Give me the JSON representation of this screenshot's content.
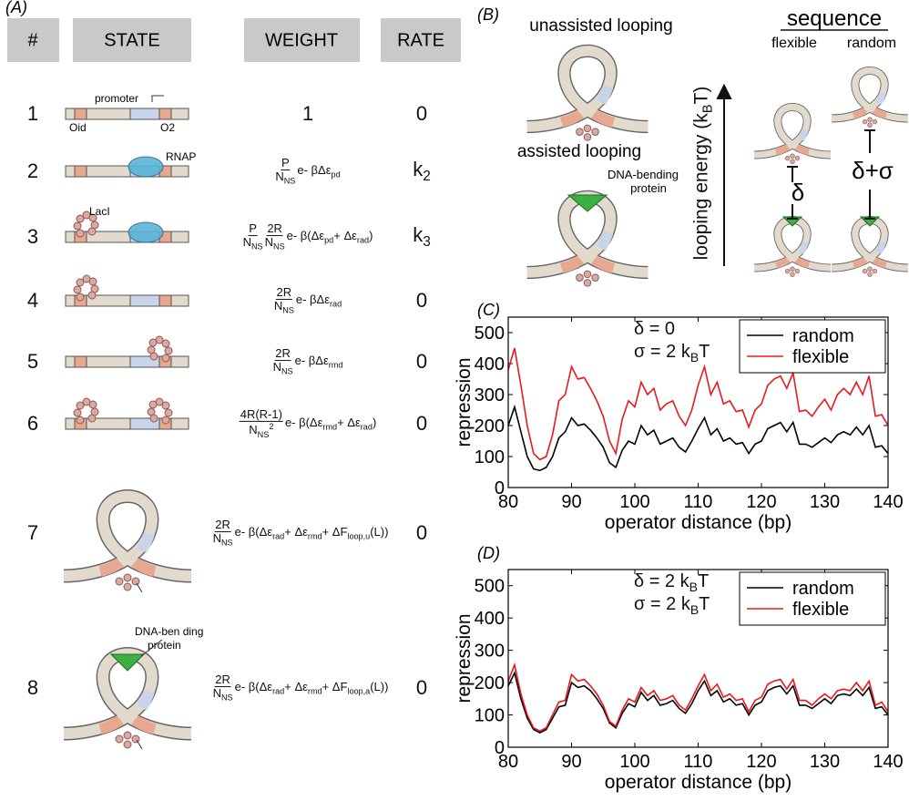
{
  "panel_labels": {
    "a": "(A)",
    "b": "(B)",
    "c": "(C)",
    "d": "(D)"
  },
  "table": {
    "headers": [
      "#",
      "STATE",
      "WEIGHT",
      "RATE"
    ],
    "rows": [
      {
        "number": 1,
        "labels": [
          "promoter",
          "Oid",
          "O2"
        ],
        "weight": {
          "fracs": [],
          "tail": [
            "1"
          ]
        },
        "rate": [
          "0"
        ]
      },
      {
        "number": 2,
        "labels": [
          "RNAP"
        ],
        "weight": {
          "fracs": [
            {
              "num": [
                "P"
              ],
              "den": [
                "N",
                {
                  "sub": "NS"
                }
              ]
            }
          ],
          "tail": [
            "e- βΔε",
            {
              "sub": "pd"
            }
          ]
        },
        "rate": [
          "k",
          {
            "sub": "2"
          }
        ]
      },
      {
        "number": 3,
        "labels": [
          "LacI"
        ],
        "weight": {
          "fracs": [
            {
              "num": [
                "P"
              ],
              "den": [
                "N",
                {
                  "sub": "NS"
                }
              ]
            },
            {
              "num": [
                "2R"
              ],
              "den": [
                "N",
                {
                  "sub": "NS"
                }
              ]
            }
          ],
          "tail": [
            "e- β(Δε",
            {
              "sub": "pd"
            },
            "+ Δε",
            {
              "sub": "rad"
            },
            ")"
          ]
        },
        "rate": [
          "k",
          {
            "sub": "3"
          }
        ]
      },
      {
        "number": 4,
        "weight": {
          "fracs": [
            {
              "num": [
                "2R"
              ],
              "den": [
                "N",
                {
                  "sub": "NS"
                }
              ]
            }
          ],
          "tail": [
            "e- βΔε",
            {
              "sub": "rad"
            }
          ]
        },
        "rate": [
          "0"
        ]
      },
      {
        "number": 5,
        "weight": {
          "fracs": [
            {
              "num": [
                "2R"
              ],
              "den": [
                "N",
                {
                  "sub": "NS"
                }
              ]
            }
          ],
          "tail": [
            "e- βΔε",
            {
              "sub": "rmd"
            }
          ]
        },
        "rate": [
          "0"
        ]
      },
      {
        "number": 6,
        "weight": {
          "fracs": [
            {
              "num": [
                "4R(R-1)"
              ],
              "den": [
                "N",
                {
                  "sub": "NS"
                },
                {
                  "sup": "2"
                }
              ]
            }
          ],
          "tail": [
            "e- β(Δε",
            {
              "sub": "rmd"
            },
            "+ Δε",
            {
              "sub": "rad"
            },
            ")"
          ]
        },
        "rate": [
          "0"
        ]
      },
      {
        "number": 7,
        "weight": {
          "fracs": [
            {
              "num": [
                "2R"
              ],
              "den": [
                "N",
                {
                  "sub": "NS"
                }
              ]
            }
          ],
          "tail": [
            "e- β(Δε",
            {
              "sub": "rad"
            },
            "+ Δε",
            {
              "sub": "rmd"
            },
            "+ ΔF",
            {
              "sub": "loop,u"
            },
            "(L))"
          ]
        },
        "rate": [
          "0"
        ]
      },
      {
        "number": 8,
        "labels": [
          "DNA-ben ding",
          "protein"
        ],
        "weight": {
          "fracs": [
            {
              "num": [
                "2R"
              ],
              "den": [
                "N",
                {
                  "sub": "NS"
                }
              ]
            }
          ],
          "tail": [
            "e- β(Δε",
            {
              "sub": "rad"
            },
            "+ Δε",
            {
              "sub": "rmd"
            },
            "+ ΔF",
            {
              "sub": "loop,a"
            },
            "(L))"
          ]
        },
        "rate": [
          "0"
        ]
      }
    ]
  },
  "panel_b": {
    "unassisted": "unassisted looping",
    "assisted": "assisted looping",
    "protein": [
      "DNA-bending",
      "protein"
    ],
    "sequence": "sequence",
    "flexible": "flexible",
    "random": "random",
    "energy_axis": [
      "looping energy (k",
      {
        "sub": "B"
      },
      "T)"
    ],
    "delta": "δ",
    "delta_sigma": "δ+σ"
  },
  "chart_data": [
    {
      "type": "line",
      "xlabel": "operator distance (bp)",
      "ylabel": "repression",
      "annotations": [
        [
          "δ = 0"
        ],
        [
          "σ = 2 k",
          {
            "sub": "B"
          },
          "T"
        ]
      ],
      "xlim": [
        80,
        140
      ],
      "ylim": [
        0,
        550
      ],
      "xticks": [
        80,
        90,
        100,
        110,
        120,
        130,
        140
      ],
      "yticks": [
        0,
        100,
        200,
        300,
        400,
        500
      ],
      "legend": "upper right",
      "x": [
        80,
        81,
        82,
        83,
        84,
        85,
        86,
        87,
        88,
        89,
        90,
        91,
        92,
        93,
        94,
        95,
        96,
        97,
        98,
        99,
        100,
        101,
        102,
        103,
        104,
        105,
        106,
        107,
        108,
        109,
        110,
        111,
        112,
        113,
        114,
        115,
        116,
        117,
        118,
        119,
        120,
        121,
        122,
        123,
        124,
        125,
        126,
        127,
        128,
        129,
        130,
        131,
        132,
        133,
        134,
        135,
        136,
        137,
        138,
        139,
        140
      ],
      "series": [
        {
          "name": "random",
          "color": "#000000",
          "values": [
            200,
            260,
            180,
            100,
            60,
            55,
            65,
            100,
            160,
            180,
            225,
            200,
            205,
            185,
            160,
            130,
            80,
            65,
            120,
            150,
            140,
            200,
            170,
            185,
            140,
            150,
            160,
            130,
            115,
            150,
            190,
            225,
            170,
            190,
            150,
            160,
            140,
            145,
            110,
            140,
            150,
            190,
            200,
            210,
            180,
            210,
            140,
            140,
            130,
            145,
            160,
            145,
            170,
            180,
            170,
            195,
            170,
            200,
            130,
            135,
            110
          ]
        },
        {
          "name": "flexible",
          "color": "#e8191e",
          "values": [
            380,
            450,
            330,
            200,
            110,
            90,
            100,
            170,
            280,
            300,
            390,
            350,
            355,
            320,
            280,
            230,
            150,
            110,
            220,
            280,
            260,
            340,
            300,
            320,
            250,
            270,
            280,
            230,
            200,
            250,
            330,
            390,
            300,
            340,
            270,
            280,
            245,
            250,
            195,
            250,
            270,
            330,
            350,
            360,
            320,
            370,
            245,
            250,
            230,
            260,
            285,
            250,
            300,
            320,
            300,
            340,
            300,
            360,
            230,
            235,
            200
          ]
        }
      ]
    },
    {
      "type": "line",
      "xlabel": "operator distance (bp)",
      "ylabel": "repression",
      "annotations": [
        [
          "δ = 2 k",
          {
            "sub": "B"
          },
          "T"
        ],
        [
          "σ = 2 k",
          {
            "sub": "B"
          },
          "T"
        ]
      ],
      "xlim": [
        80,
        140
      ],
      "ylim": [
        0,
        550
      ],
      "xticks": [
        80,
        90,
        100,
        110,
        120,
        130,
        140
      ],
      "yticks": [
        0,
        100,
        200,
        300,
        400,
        500
      ],
      "legend": "upper right",
      "x": [
        80,
        81,
        82,
        83,
        84,
        85,
        86,
        87,
        88,
        89,
        90,
        91,
        92,
        93,
        94,
        95,
        96,
        97,
        98,
        99,
        100,
        101,
        102,
        103,
        104,
        105,
        106,
        107,
        108,
        109,
        110,
        111,
        112,
        113,
        114,
        115,
        116,
        117,
        118,
        119,
        120,
        121,
        122,
        123,
        124,
        125,
        126,
        127,
        128,
        129,
        130,
        131,
        132,
        133,
        134,
        135,
        136,
        137,
        138,
        139,
        140
      ],
      "series": [
        {
          "name": "random",
          "color": "#000000",
          "values": [
            190,
            230,
            150,
            90,
            55,
            45,
            55,
            90,
            125,
            130,
            200,
            185,
            190,
            175,
            150,
            120,
            75,
            60,
            105,
            135,
            125,
            170,
            145,
            160,
            130,
            135,
            145,
            120,
            105,
            135,
            175,
            205,
            160,
            175,
            140,
            150,
            130,
            135,
            100,
            130,
            140,
            175,
            185,
            190,
            165,
            190,
            130,
            130,
            120,
            135,
            150,
            135,
            160,
            165,
            160,
            180,
            160,
            185,
            120,
            125,
            100
          ]
        },
        {
          "name": "flexible",
          "color": "#e8191e",
          "values": [
            205,
            255,
            165,
            100,
            60,
            50,
            60,
            100,
            140,
            145,
            225,
            205,
            210,
            190,
            165,
            130,
            80,
            65,
            115,
            150,
            140,
            185,
            160,
            175,
            145,
            150,
            160,
            130,
            115,
            150,
            190,
            225,
            175,
            195,
            155,
            165,
            145,
            150,
            110,
            145,
            155,
            195,
            205,
            210,
            180,
            210,
            145,
            145,
            130,
            150,
            165,
            150,
            175,
            180,
            175,
            200,
            175,
            205,
            130,
            140,
            110
          ]
        }
      ]
    }
  ]
}
